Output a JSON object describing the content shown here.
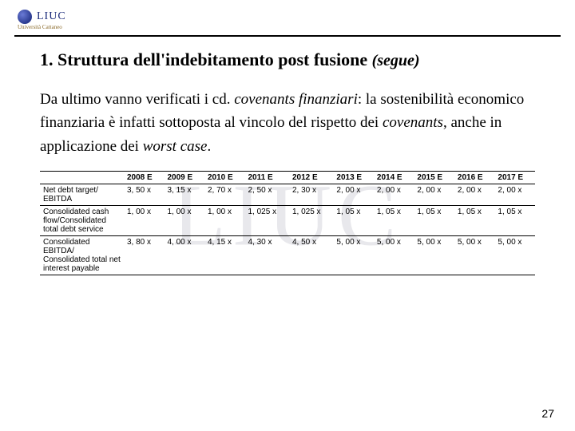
{
  "logo": {
    "text": "LIUC",
    "subtitle": "Università Cattaneo"
  },
  "watermark": "LIUC",
  "title": {
    "main": "1. Struttura dell'indebitamento post fusione",
    "suffix": "(segue)"
  },
  "paragraph": {
    "p1": "Da ultimo vanno verificati i cd. ",
    "em1": "covenants finanziari",
    "p2": ": la sostenibilità economico finanziaria è infatti sottoposta al vincolo del rispetto dei ",
    "em2": "covenants",
    "p3": ", anche in applicazione dei ",
    "em3": "worst case",
    "p4": "."
  },
  "table": {
    "columns": [
      "2008 E",
      "2009 E",
      "2010 E",
      "2011 E",
      "2012 E",
      "2013 E",
      "2014 E",
      "2015 E",
      "2016 E",
      "2017 E"
    ],
    "rows": [
      {
        "label": "Net debt target/ EBITDA",
        "values": [
          "3, 50 x",
          "3, 15 x",
          "2, 70 x",
          "2, 50 x",
          "2, 30 x",
          "2, 00 x",
          "2, 00 x",
          "2, 00 x",
          "2, 00 x",
          "2, 00 x"
        ]
      },
      {
        "label": "Consolidated cash flow/Consolidated total debt service",
        "values": [
          "1, 00 x",
          "1, 00 x",
          "1, 00 x",
          "1, 025 x",
          "1, 025 x",
          "1, 05 x",
          "1, 05 x",
          "1, 05 x",
          "1, 05 x",
          "1, 05 x"
        ]
      },
      {
        "label": "Consolidated EBITDA/ Consolidated total net interest payable",
        "values": [
          "3, 80 x",
          "4, 00 x",
          "4, 15 x",
          "4, 30 x",
          "4, 50 x",
          "5, 00 x",
          "5, 00 x",
          "5, 00 x",
          "5, 00 x",
          "5, 00 x"
        ]
      }
    ]
  },
  "pageNumber": "27"
}
